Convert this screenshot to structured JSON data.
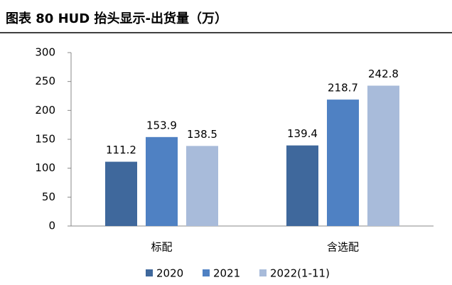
{
  "chart_data": {
    "type": "bar",
    "title": "图表 80 HUD 抬头显示-出货量（万）",
    "categories": [
      "标配",
      "含选配"
    ],
    "series": [
      {
        "name": "2020",
        "color": "#3f689c",
        "values": [
          111.2,
          139.4
        ]
      },
      {
        "name": "2021",
        "color": "#4f81c3",
        "values": [
          153.9,
          218.7
        ]
      },
      {
        "name": "2022(1-11)",
        "color": "#a8bbda",
        "values": [
          138.5,
          242.8
        ]
      }
    ],
    "ylim": [
      0,
      300
    ],
    "yticks": [
      0,
      50,
      100,
      150,
      200,
      250,
      300
    ],
    "grid": false,
    "legend": "bottom"
  }
}
